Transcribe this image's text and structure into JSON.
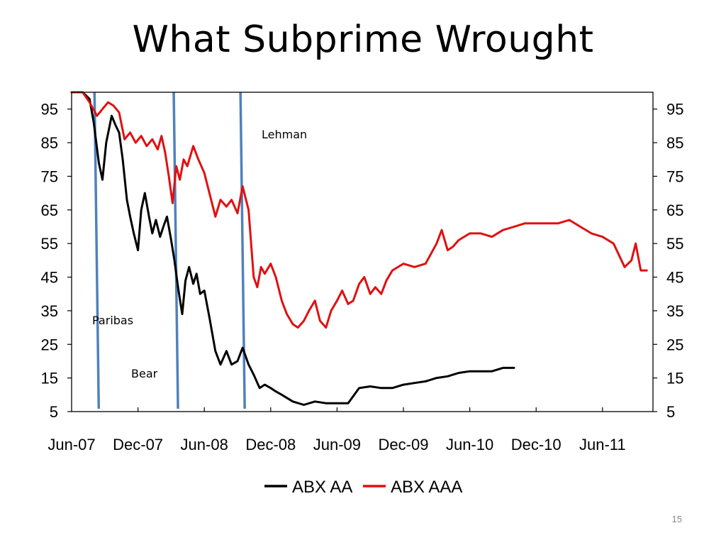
{
  "slide": {
    "title": "What Subprime Wrought",
    "page_number": "15"
  },
  "chart_data": {
    "type": "line",
    "title": "",
    "xlabel": "",
    "ylabel": "",
    "ylim": [
      5,
      100
    ],
    "yticks": [
      5,
      15,
      25,
      35,
      45,
      55,
      65,
      75,
      85,
      95
    ],
    "y_right_axis": true,
    "grid": false,
    "legend_position": "bottom",
    "x_ticks": [
      "Jun-07",
      "Dec-07",
      "Jun-08",
      "Dec-08",
      "Jun-09",
      "Dec-09",
      "Jun-10",
      "Dec-10",
      "Jun-11"
    ],
    "x_start": "2007-06",
    "events": [
      {
        "label": "Paribas",
        "x": "2007-08-09"
      },
      {
        "label": "Bear",
        "x": "2008-03-14"
      },
      {
        "label": "Lehman",
        "x": "2008-09-15"
      }
    ],
    "series": [
      {
        "name": "ABX AA",
        "color": "#000000",
        "x": [
          "2007-06-01",
          "2007-07-01",
          "2007-07-20",
          "2007-08-01",
          "2007-08-15",
          "2007-08-25",
          "2007-09-05",
          "2007-09-20",
          "2007-10-01",
          "2007-10-10",
          "2007-10-20",
          "2007-11-01",
          "2007-11-10",
          "2007-11-20",
          "2007-12-01",
          "2007-12-10",
          "2007-12-20",
          "2008-01-01",
          "2008-01-10",
          "2008-01-20",
          "2008-02-01",
          "2008-02-10",
          "2008-02-20",
          "2008-03-01",
          "2008-03-10",
          "2008-03-20",
          "2008-04-01",
          "2008-04-10",
          "2008-04-20",
          "2008-05-01",
          "2008-05-10",
          "2008-05-20",
          "2008-06-01",
          "2008-06-15",
          "2008-07-01",
          "2008-07-15",
          "2008-08-01",
          "2008-08-15",
          "2008-09-01",
          "2008-09-15",
          "2008-10-01",
          "2008-10-15",
          "2008-11-01",
          "2008-11-15",
          "2008-12-01",
          "2008-12-15",
          "2009-01-01",
          "2009-02-01",
          "2009-03-01",
          "2009-04-01",
          "2009-05-01",
          "2009-06-01",
          "2009-07-01",
          "2009-08-01",
          "2009-09-01",
          "2009-10-01",
          "2009-11-01",
          "2009-12-01",
          "2010-01-01",
          "2010-02-01",
          "2010-03-01",
          "2010-04-01",
          "2010-05-01",
          "2010-06-01",
          "2010-07-01",
          "2010-08-01",
          "2010-09-01",
          "2010-10-01"
        ],
        "values": [
          100,
          100,
          98,
          91,
          79,
          74,
          85,
          93,
          90,
          88,
          80,
          68,
          63,
          58,
          53,
          65,
          70,
          63,
          58,
          62,
          57,
          60,
          63,
          56,
          50,
          42,
          34,
          44,
          48,
          43,
          46,
          40,
          41,
          33,
          23,
          19,
          23,
          19,
          20,
          24,
          19,
          16,
          12,
          13,
          12,
          11,
          10,
          8,
          7,
          8,
          7.5,
          7.5,
          7.5,
          12,
          12.5,
          12,
          12,
          13,
          13.5,
          14,
          15,
          15.5,
          16.5,
          17,
          17,
          17,
          18,
          18
        ]
      },
      {
        "name": "ABX AAA",
        "color": "#e01010",
        "x": [
          "2007-06-01",
          "2007-07-01",
          "2007-07-20",
          "2007-08-10",
          "2007-08-25",
          "2007-09-10",
          "2007-09-25",
          "2007-10-10",
          "2007-10-25",
          "2007-11-10",
          "2007-11-25",
          "2007-12-10",
          "2007-12-25",
          "2008-01-10",
          "2008-01-25",
          "2008-02-05",
          "2008-02-15",
          "2008-02-25",
          "2008-03-05",
          "2008-03-15",
          "2008-03-25",
          "2008-04-05",
          "2008-04-15",
          "2008-05-01",
          "2008-05-15",
          "2008-06-01",
          "2008-06-15",
          "2008-07-01",
          "2008-07-15",
          "2008-08-01",
          "2008-08-15",
          "2008-09-01",
          "2008-09-15",
          "2008-10-01",
          "2008-10-15",
          "2008-10-25",
          "2008-11-05",
          "2008-11-15",
          "2008-12-01",
          "2008-12-15",
          "2009-01-01",
          "2009-01-15",
          "2009-02-01",
          "2009-02-15",
          "2009-03-01",
          "2009-03-15",
          "2009-04-01",
          "2009-04-15",
          "2009-05-01",
          "2009-05-15",
          "2009-06-01",
          "2009-06-15",
          "2009-07-01",
          "2009-07-15",
          "2009-08-01",
          "2009-08-15",
          "2009-09-01",
          "2009-09-15",
          "2009-10-01",
          "2009-10-15",
          "2009-11-01",
          "2009-12-01",
          "2010-01-01",
          "2010-02-01",
          "2010-03-01",
          "2010-03-15",
          "2010-04-01",
          "2010-04-15",
          "2010-05-01",
          "2010-06-01",
          "2010-07-01",
          "2010-08-01",
          "2010-09-01",
          "2010-10-01",
          "2010-11-01",
          "2010-12-01",
          "2011-01-01",
          "2011-02-01",
          "2011-03-01",
          "2011-04-01",
          "2011-05-01",
          "2011-06-01",
          "2011-07-01",
          "2011-08-01",
          "2011-08-20",
          "2011-09-01",
          "2011-09-15",
          "2011-10-01"
        ],
        "values": [
          100,
          100,
          97,
          93,
          95,
          97,
          96,
          94,
          86,
          88,
          85,
          87,
          84,
          86,
          83,
          87,
          82,
          75,
          67,
          78,
          74,
          80,
          78,
          84,
          80,
          76,
          70,
          63,
          68,
          66,
          68,
          64,
          72,
          65,
          45,
          42,
          48,
          46,
          49,
          45,
          38,
          34,
          31,
          30,
          32,
          35,
          38,
          32,
          30,
          35,
          38,
          41,
          37,
          38,
          43,
          45,
          40,
          42,
          40,
          44,
          47,
          49,
          48,
          49,
          55,
          59,
          53,
          54,
          56,
          58,
          58,
          57,
          59,
          60,
          61,
          61,
          61,
          61,
          62,
          60,
          58,
          57,
          55,
          48,
          50,
          55,
          47,
          47
        ]
      }
    ]
  }
}
